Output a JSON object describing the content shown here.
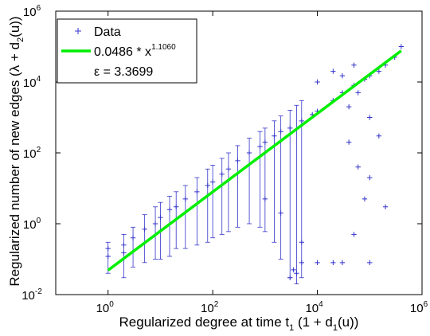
{
  "chart_data": {
    "type": "scatter",
    "xscale": "log",
    "yscale": "log",
    "xlim": [
      0.1,
      1000000
    ],
    "ylim": [
      0.01,
      1000000
    ],
    "x_ticks": [
      {
        "base": "10",
        "exp": "0"
      },
      {
        "base": "10",
        "exp": "2"
      },
      {
        "base": "10",
        "exp": "4"
      },
      {
        "base": "10",
        "exp": "6"
      }
    ],
    "y_ticks": [
      {
        "base": "10",
        "exp": "-2"
      },
      {
        "base": "10",
        "exp": "0"
      },
      {
        "base": "10",
        "exp": "2"
      },
      {
        "base": "10",
        "exp": "4"
      },
      {
        "base": "10",
        "exp": "6"
      }
    ],
    "xlabel": {
      "main": "Regularized degree at time t",
      "sub": "1",
      "tail": " (1 + d",
      "sub2": "1",
      "tail2": "(u))"
    },
    "ylabel": {
      "main": "Regularized number of new edges (λ + d",
      "sub": "2",
      "tail": "(u))"
    },
    "grid": false,
    "legend": {
      "position": "top-left",
      "entries": [
        {
          "label": "Data",
          "marker": "+",
          "color": "#3333cc"
        },
        {
          "label": "0.0486 * x",
          "sup": "1.1060",
          "color": "#00ee00"
        },
        {
          "label": "ε = 3.3699"
        }
      ]
    },
    "fit": {
      "coefficient": 0.0486,
      "exponent": 1.106,
      "x_range": [
        1,
        400000
      ]
    },
    "series": [
      {
        "name": "Data",
        "marker": "+",
        "color": "#3333cc",
        "points": [
          [
            1,
            0.12
          ],
          [
            1,
            0.2
          ],
          [
            2,
            0.15
          ],
          [
            2,
            0.25
          ],
          [
            3,
            0.4
          ],
          [
            5,
            0.7
          ],
          [
            8,
            1.0
          ],
          [
            10,
            1.5
          ],
          [
            15,
            2.5
          ],
          [
            20,
            3.0
          ],
          [
            30,
            5.0
          ],
          [
            50,
            8.0
          ],
          [
            80,
            12
          ],
          [
            100,
            15
          ],
          [
            150,
            25
          ],
          [
            200,
            35
          ],
          [
            300,
            60
          ],
          [
            500,
            100
          ],
          [
            800,
            150
          ],
          [
            1000,
            200
          ],
          [
            1500,
            300
          ],
          [
            2000,
            400
          ],
          [
            3000,
            500
          ],
          [
            5000,
            800
          ],
          [
            8000,
            1200
          ],
          [
            10000,
            1500
          ],
          [
            20000,
            3000
          ],
          [
            30000,
            5000
          ],
          [
            50000,
            8000
          ],
          [
            80000,
            12000
          ],
          [
            100000,
            15000
          ],
          [
            150000,
            20000
          ],
          [
            200000,
            30000
          ],
          [
            300000,
            50000
          ],
          [
            400000,
            100000
          ],
          [
            40000,
            2000
          ],
          [
            60000,
            5000
          ],
          [
            100000,
            1000
          ],
          [
            150000,
            300
          ],
          [
            200000,
            3
          ],
          [
            100000,
            20
          ],
          [
            80000,
            5
          ],
          [
            50000,
            0.5
          ],
          [
            30000,
            0.08
          ],
          [
            10000,
            0.08
          ],
          [
            20000,
            0.08
          ],
          [
            5000,
            0.08
          ],
          [
            100000,
            0.08
          ],
          [
            1000,
            5
          ],
          [
            2000,
            2
          ],
          [
            5000,
            0.3
          ],
          [
            10000,
            10000
          ],
          [
            20000,
            20000
          ],
          [
            50000,
            30000
          ],
          [
            30000,
            15000
          ],
          [
            3000,
            0.03
          ],
          [
            3500,
            0.05
          ],
          [
            4000,
            0.04
          ],
          [
            60000,
            40
          ],
          [
            40000,
            200
          ]
        ],
        "error_bars": [
          [
            1,
            0.12,
            0.04,
            0.3
          ],
          [
            2,
            0.15,
            0.03,
            0.5
          ],
          [
            3,
            0.35,
            0.06,
            0.8
          ],
          [
            5,
            0.6,
            0.08,
            1.8
          ],
          [
            8,
            0.9,
            0.1,
            3.0
          ],
          [
            10,
            1.2,
            0.1,
            4.0
          ],
          [
            15,
            2.0,
            0.12,
            6.0
          ],
          [
            20,
            3.0,
            0.2,
            8.0
          ],
          [
            30,
            4.0,
            0.2,
            12
          ],
          [
            50,
            6.0,
            0.25,
            20
          ],
          [
            80,
            10,
            0.3,
            35
          ],
          [
            100,
            12,
            0.4,
            45
          ],
          [
            150,
            18,
            0.5,
            70
          ],
          [
            200,
            25,
            0.6,
            100
          ],
          [
            300,
            40,
            0.8,
            160
          ],
          [
            500,
            70,
            1.0,
            260
          ],
          [
            800,
            110,
            0.8,
            400
          ],
          [
            1000,
            150,
            0.6,
            500
          ],
          [
            1500,
            220,
            0.3,
            800
          ],
          [
            2000,
            300,
            0.1,
            1100
          ],
          [
            3000,
            450,
            0.03,
            1600
          ],
          [
            4000,
            600,
            0.02,
            2200
          ],
          [
            5000,
            700,
            0.03,
            3000
          ]
        ]
      }
    ]
  }
}
